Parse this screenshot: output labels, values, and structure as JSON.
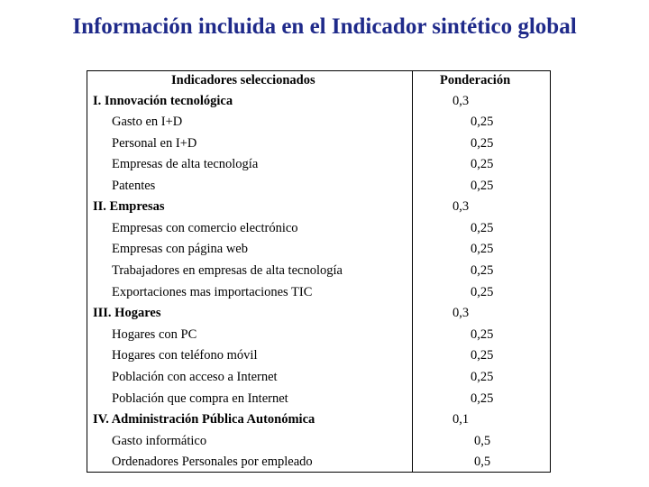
{
  "title": "Información incluida en el Indicador sintético global",
  "table": {
    "header_indicators": "Indicadores seleccionados",
    "header_weight": "Ponderación",
    "rows": [
      {
        "label": "I. Innovación tecnológica",
        "weight": "0,3"
      },
      {
        "label": "Gasto en I+D",
        "weight": "0,25"
      },
      {
        "label": "Personal en I+D",
        "weight": "0,25"
      },
      {
        "label": "Empresas de alta tecnología",
        "weight": "0,25"
      },
      {
        "label": "Patentes",
        "weight": "0,25"
      },
      {
        "label": "II. Empresas",
        "weight": "0,3"
      },
      {
        "label": "Empresas con comercio electrónico",
        "weight": "0,25"
      },
      {
        "label": "Empresas con página web",
        "weight": "0,25"
      },
      {
        "label": "Trabajadores en empresas de alta tecnología",
        "weight": "0,25"
      },
      {
        "label": "Exportaciones mas importaciones TIC",
        "weight": "0,25"
      },
      {
        "label": "III. Hogares",
        "weight": "0,3"
      },
      {
        "label": "Hogares con PC",
        "weight": "0,25"
      },
      {
        "label": "Hogares con teléfono móvil",
        "weight": "0,25"
      },
      {
        "label": "Población con acceso a Internet",
        "weight": "0,25"
      },
      {
        "label": "Población que compra en Internet",
        "weight": "0,25"
      },
      {
        "label": "IV. Administración Pública Autonómica",
        "weight": "0,1"
      },
      {
        "label": "Gasto informático",
        "weight": "0,5"
      },
      {
        "label": "Ordenadores Personales por empleado",
        "weight": "0,5"
      }
    ]
  }
}
